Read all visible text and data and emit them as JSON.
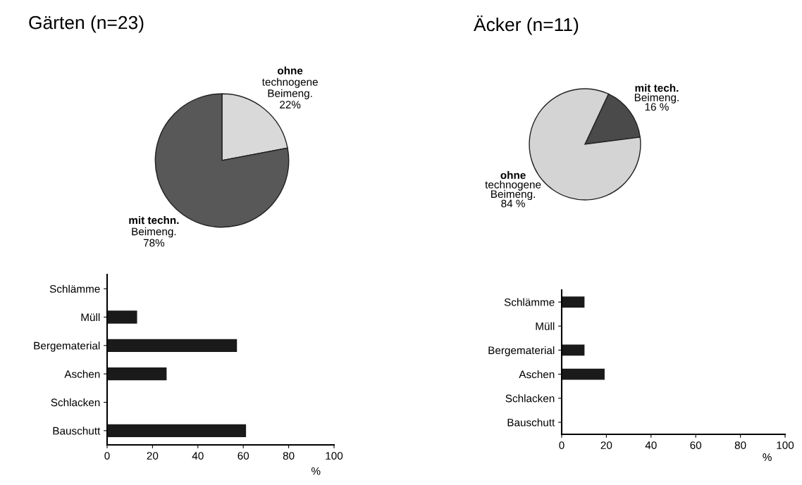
{
  "chart_data": [
    {
      "type": "pie",
      "title": "Gärten (n=23)",
      "categories": [
        "ohne\ntechnogene\nBeimeng.",
        "mit techn.\nBeimeng."
      ],
      "values": [
        22,
        78
      ],
      "colors": [
        "#d9d9d9",
        "#585858"
      ],
      "value_labels": [
        "22%",
        "78%"
      ]
    },
    {
      "type": "bar",
      "orientation": "horizontal",
      "categories": [
        "Schlämme",
        "Müll",
        "Bergematerial",
        "Aschen",
        "Schlacken",
        "Bauschutt"
      ],
      "values": [
        0,
        13,
        57,
        26,
        0,
        61
      ],
      "color": "#1a1a1a",
      "xlim": [
        0,
        100
      ],
      "xticks": [
        0,
        20,
        40,
        60,
        80,
        100
      ],
      "xlabel": "%",
      "grid": false
    },
    {
      "type": "pie",
      "title": "Äcker (n=11)",
      "categories": [
        "mit tech.\nBeimeng.",
        "ohne\ntechnogene\nBeimeng."
      ],
      "values": [
        16,
        84
      ],
      "colors": [
        "#4a4a4a",
        "#d4d4d4"
      ],
      "value_labels": [
        "16 %",
        "84 %"
      ]
    },
    {
      "type": "bar",
      "orientation": "horizontal",
      "categories": [
        "Schlämme",
        "Müll",
        "Bergematerial",
        "Aschen",
        "Schlacken",
        "Bauschutt"
      ],
      "values": [
        10,
        0,
        10,
        19,
        0,
        0
      ],
      "color": "#1a1a1a",
      "xlim": [
        0,
        100
      ],
      "xticks": [
        0,
        20,
        40,
        60,
        80,
        100
      ],
      "xlabel": "%",
      "grid": false
    }
  ]
}
